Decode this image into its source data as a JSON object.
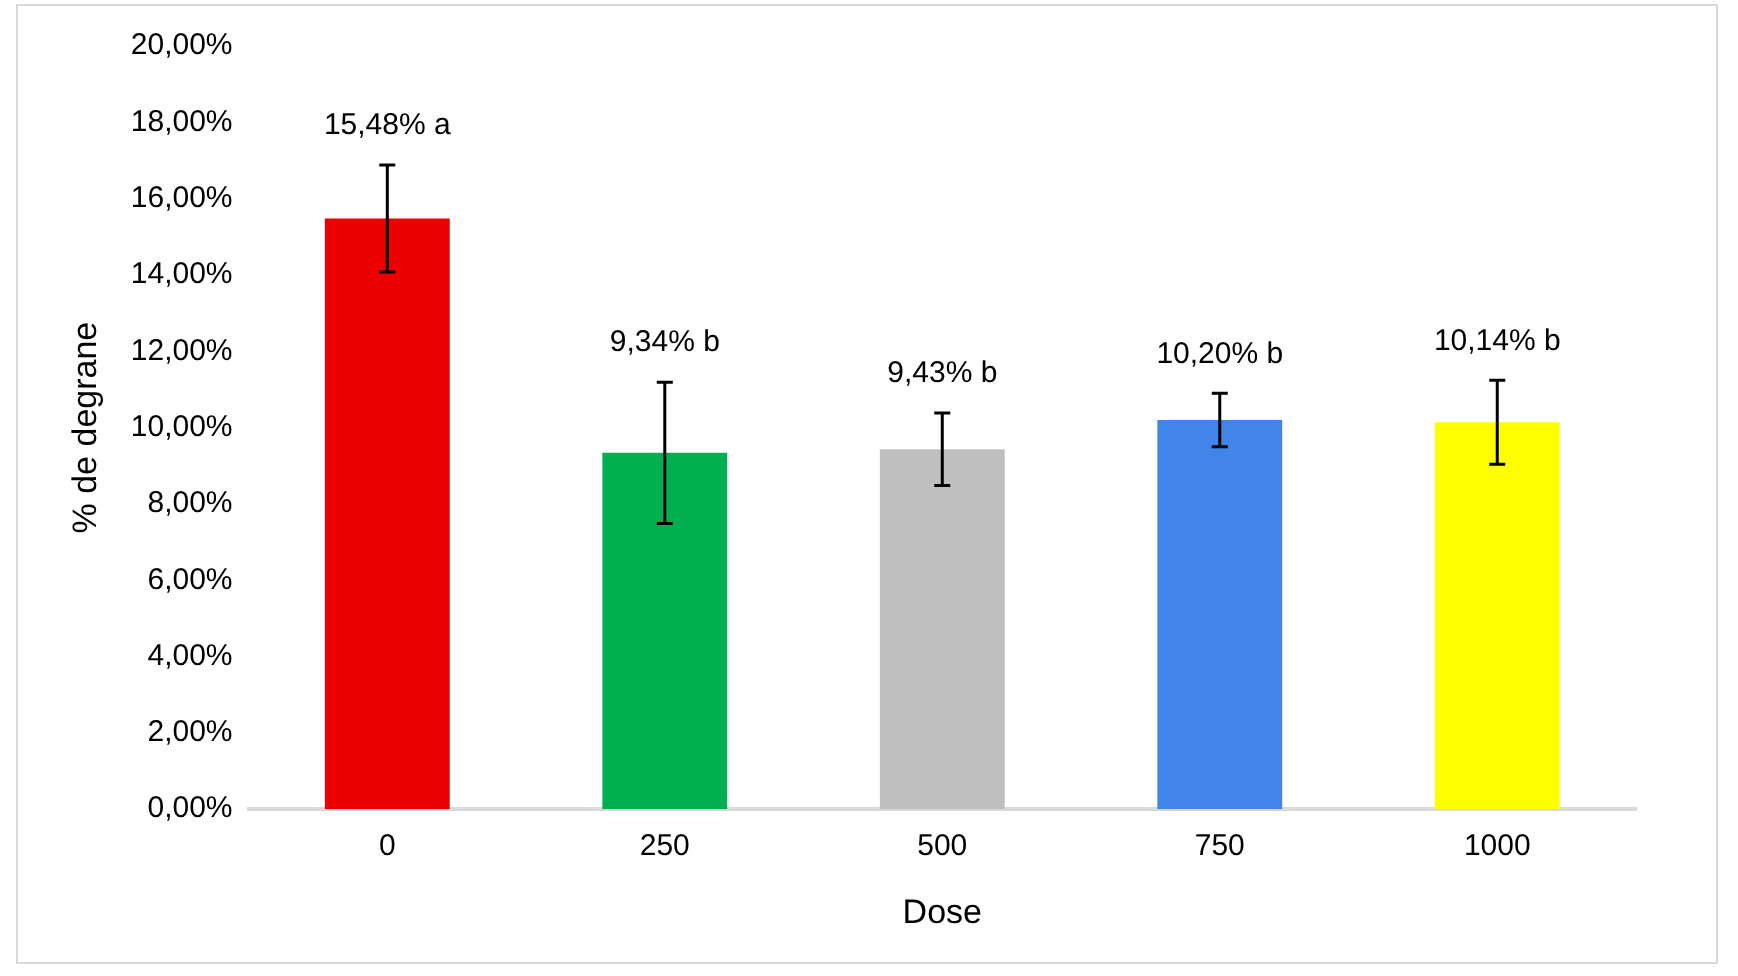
{
  "chart_data": {
    "type": "bar",
    "xlabel": "Dose",
    "ylabel": "% de degrane",
    "categories": [
      "0",
      "250",
      "500",
      "750",
      "1000"
    ],
    "values": [
      15.48,
      9.34,
      9.43,
      10.2,
      10.14
    ],
    "colors": [
      "#ee0000",
      "#00b050",
      "#bfbfbf",
      "#4185e8",
      "#ffff00"
    ],
    "errors": [
      1.4,
      1.85,
      0.95,
      0.7,
      1.1
    ],
    "value_labels": [
      "15,48% a",
      "9,34% b",
      "9,43% b",
      "10,20% b",
      "10,14% b"
    ],
    "ylim": [
      0,
      20
    ],
    "yticks": [
      {
        "value": 0,
        "label": "0,00%"
      },
      {
        "value": 2,
        "label": "2,00%"
      },
      {
        "value": 4,
        "label": "4,00%"
      },
      {
        "value": 6,
        "label": "6,00%"
      },
      {
        "value": 8,
        "label": "8,00%"
      },
      {
        "value": 10,
        "label": "10,00%"
      },
      {
        "value": 12,
        "label": "12,00%"
      },
      {
        "value": 14,
        "label": "14,00%"
      },
      {
        "value": 16,
        "label": "16,00%"
      },
      {
        "value": 18,
        "label": "18,00%"
      },
      {
        "value": 20,
        "label": "20,00%"
      }
    ],
    "grid": false,
    "legend": false
  }
}
